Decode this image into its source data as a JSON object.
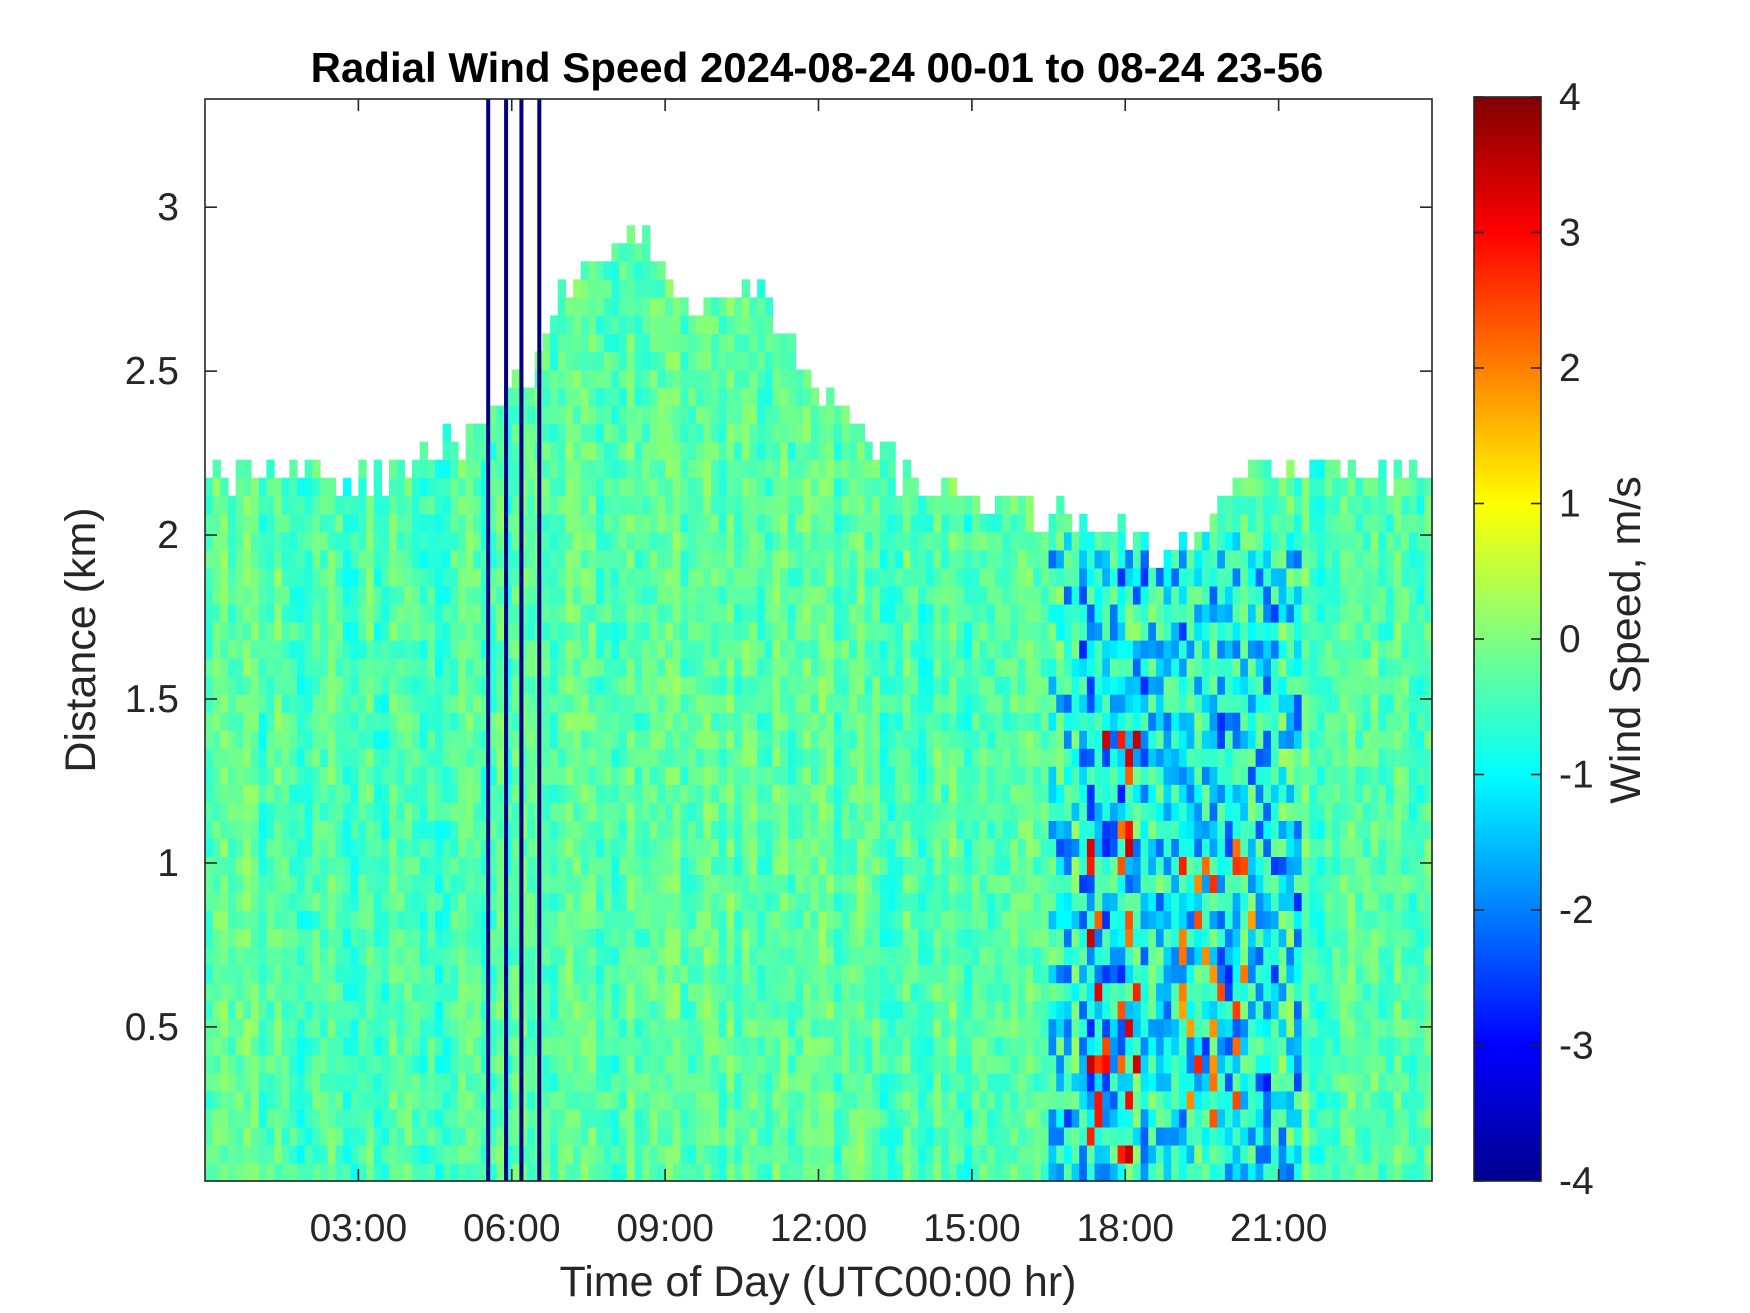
{
  "chart_data": {
    "type": "heatmap",
    "title": "Radial Wind Speed 2024-08-24 00-01 to 08-24 23-56",
    "xlabel": "Time of Day (UTC00:00 hr)",
    "ylabel": "Distance (km)",
    "colorbar_label": "Wind Speed, m/s",
    "colormap": "jet",
    "xlim": [
      0,
      24
    ],
    "ylim": [
      0.03,
      3.33
    ],
    "clim": [
      -4,
      4
    ],
    "x_ticks": [
      3,
      6,
      9,
      12,
      15,
      18,
      21
    ],
    "x_tick_labels": [
      "03:00",
      "06:00",
      "09:00",
      "12:00",
      "15:00",
      "18:00",
      "21:00"
    ],
    "y_ticks": [
      0.5,
      1,
      1.5,
      2,
      2.5,
      3
    ],
    "y_tick_labels": [
      "0.5",
      "1",
      "1.5",
      "2",
      "2.5",
      "3"
    ],
    "colorbar_ticks": [
      4,
      3,
      2,
      1,
      0,
      -1,
      -2,
      -3,
      -4
    ],
    "colorbar_tick_labels": [
      "4",
      "3",
      "2",
      "1",
      "0",
      "-1",
      "-2",
      "-3",
      "-4"
    ],
    "grid": false,
    "data_top_profile_km": [
      [
        0.0,
        2.15
      ],
      [
        1.0,
        2.2
      ],
      [
        2.0,
        2.18
      ],
      [
        3.0,
        2.18
      ],
      [
        4.0,
        2.2
      ],
      [
        5.0,
        2.3
      ],
      [
        6.0,
        2.45
      ],
      [
        6.5,
        2.55
      ],
      [
        7.0,
        2.75
      ],
      [
        8.0,
        2.85
      ],
      [
        8.5,
        2.95
      ],
      [
        9.0,
        2.75
      ],
      [
        10.0,
        2.7
      ],
      [
        11.0,
        2.75
      ],
      [
        11.5,
        2.55
      ],
      [
        12.0,
        2.45
      ],
      [
        13.0,
        2.3
      ],
      [
        13.5,
        2.2
      ],
      [
        14.5,
        2.15
      ],
      [
        15.5,
        2.1
      ],
      [
        16.5,
        2.05
      ],
      [
        17.5,
        2.0
      ],
      [
        18.5,
        1.95
      ],
      [
        19.5,
        2.0
      ],
      [
        20.5,
        2.2
      ],
      [
        21.5,
        2.2
      ],
      [
        22.5,
        2.2
      ],
      [
        23.5,
        2.2
      ],
      [
        24.0,
        2.2
      ]
    ],
    "features": [
      {
        "x_start": 0.0,
        "x_end": 16.5,
        "y_start": 0.03,
        "y_end": 2.2,
        "value": -0.3
      },
      {
        "x_start": 5.3,
        "x_end": 6.7,
        "y_start": 0.03,
        "y_end": 3.33,
        "value": -4.0
      },
      {
        "x_start": 16.5,
        "x_end": 21.5,
        "y_start": 0.03,
        "y_end": 2.0,
        "value": -1.5
      },
      {
        "x_start": 17.2,
        "x_end": 18.3,
        "y_start": 0.1,
        "y_end": 1.4,
        "value": 3.5
      },
      {
        "x_start": 19.0,
        "x_end": 20.5,
        "y_start": 0.2,
        "y_end": 1.1,
        "value": 2.8
      }
    ]
  }
}
